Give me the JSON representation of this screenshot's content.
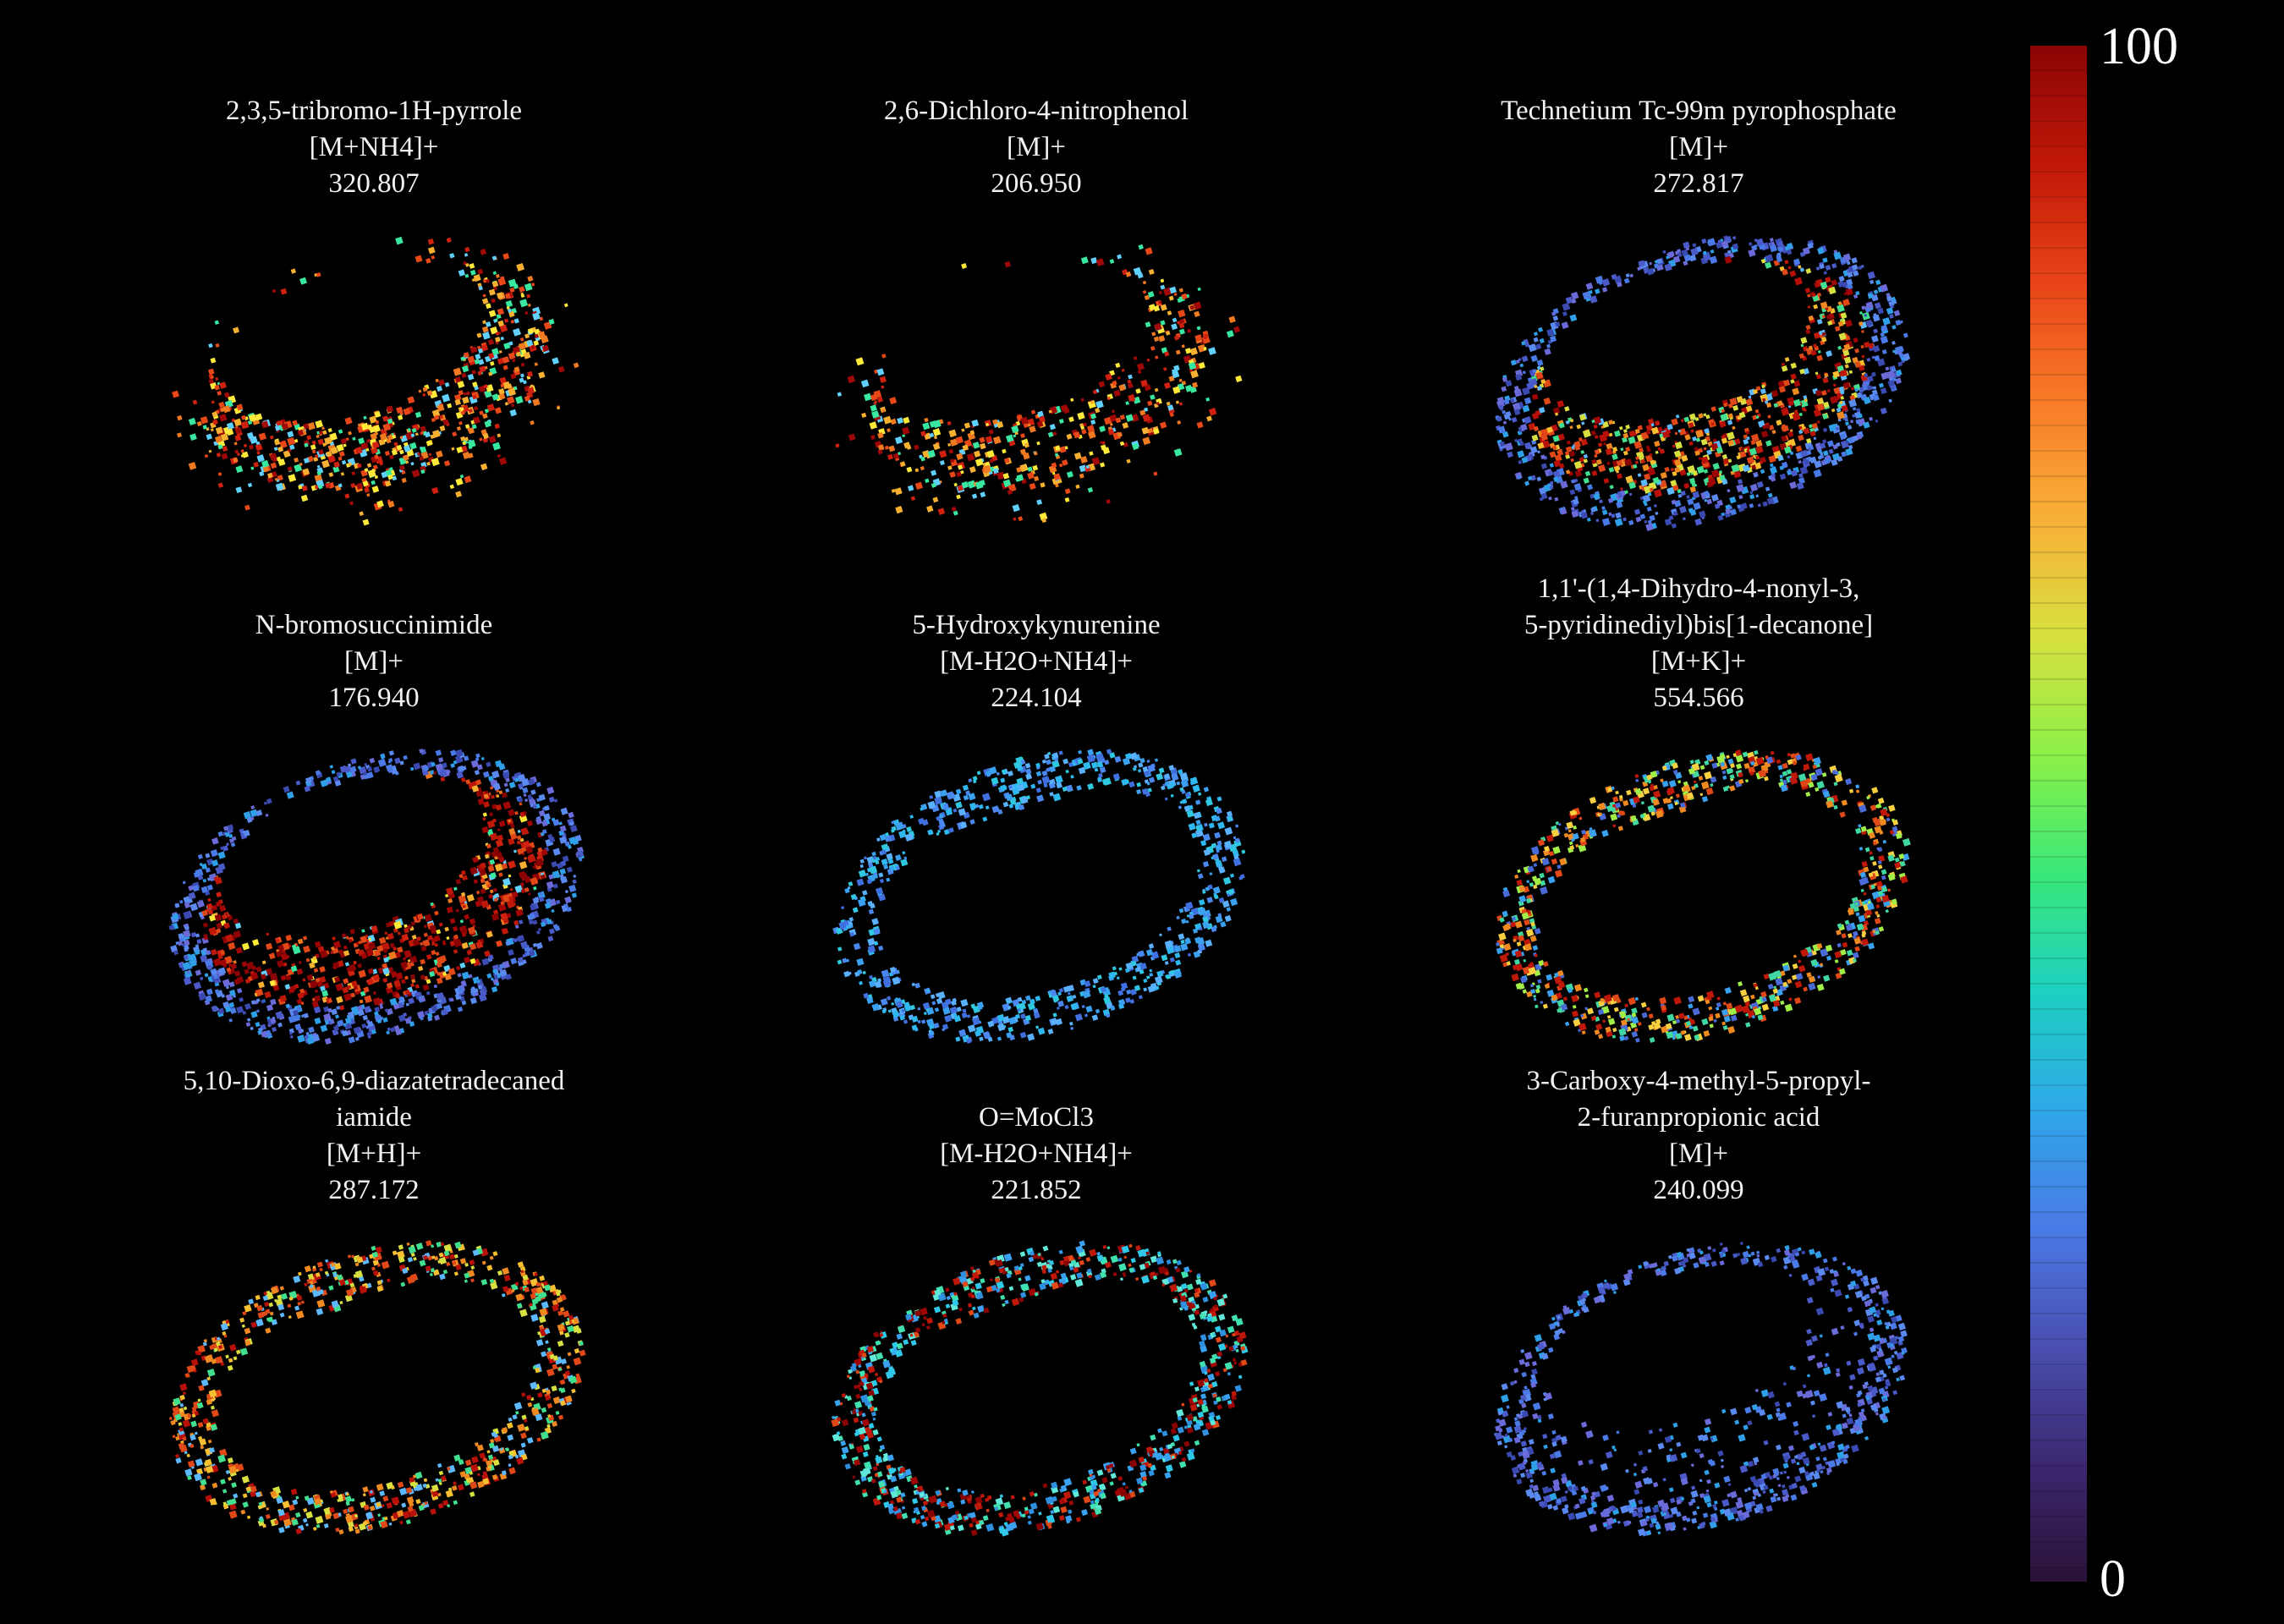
{
  "panels": [
    {
      "name": "2,3,5-tribromo-1H-pyrrole",
      "lines": [
        "2,3,5-tribromo-1H-pyrrole",
        "[M+NH4]+",
        "320.807"
      ],
      "pattern": "inner-hot"
    },
    {
      "name": "2,6-Dichloro-4-nitrophenol",
      "lines": [
        "2,6-Dichloro-4-nitrophenol",
        "[M]+",
        "206.950"
      ],
      "pattern": "inner-hot-sparse"
    },
    {
      "name": "Technetium Tc-99m pyrophosphate",
      "lines": [
        "Technetium Tc-99m pyrophosphate",
        "[M]+",
        "272.817"
      ],
      "pattern": "full-mixed"
    },
    {
      "name": "N-bromosuccinimide",
      "lines": [
        "N-bromosuccinimide",
        "[M]+",
        "176.940"
      ],
      "pattern": "full-red-core"
    },
    {
      "name": "5-Hydroxykynurenine",
      "lines": [
        "5-Hydroxykynurenine",
        "[M-H2O+NH4]+",
        "224.104"
      ],
      "pattern": "outer-blue"
    },
    {
      "name": "1,1'-(1,4-Dihydro-4-nonyl-3,5-pyridinediyl)bis[1-decanone]",
      "lines": [
        "1,1'-(1,4-Dihydro-4-nonyl-3,",
        "5-pyridinediyl)bis[1-decanone]",
        "[M+K]+",
        "554.566"
      ],
      "pattern": "outer-mixed"
    },
    {
      "name": "5,10-Dioxo-6,9-diazatetradecanediamide",
      "lines": [
        "5,10-Dioxo-6,9-diazatetradecaned",
        "iamide",
        "[M+H]+",
        "287.172"
      ],
      "pattern": "outer-hot"
    },
    {
      "name": "O=MoCl3",
      "lines": [
        "O=MoCl3",
        "[M-H2O+NH4]+",
        "221.852"
      ],
      "pattern": "outer-cyan-red"
    },
    {
      "name": "3-Carboxy-4-methyl-5-propyl-2-furanpropionic acid",
      "lines": [
        "3-Carboxy-4-methyl-5-propyl-",
        "2-furanpropionic acid",
        "[M]+",
        "240.099"
      ],
      "pattern": "full-blue"
    }
  ],
  "colorbar": {
    "max_label": "100",
    "min_label": "0",
    "colors": [
      "#2a1238",
      "#3b2870",
      "#4a4fb0",
      "#4a7ae6",
      "#2fa8e8",
      "#1dd0c0",
      "#3ae878",
      "#8cf048",
      "#d8e040",
      "#f8b038",
      "#f87a28",
      "#e84418",
      "#c01808",
      "#8a0404"
    ]
  }
}
